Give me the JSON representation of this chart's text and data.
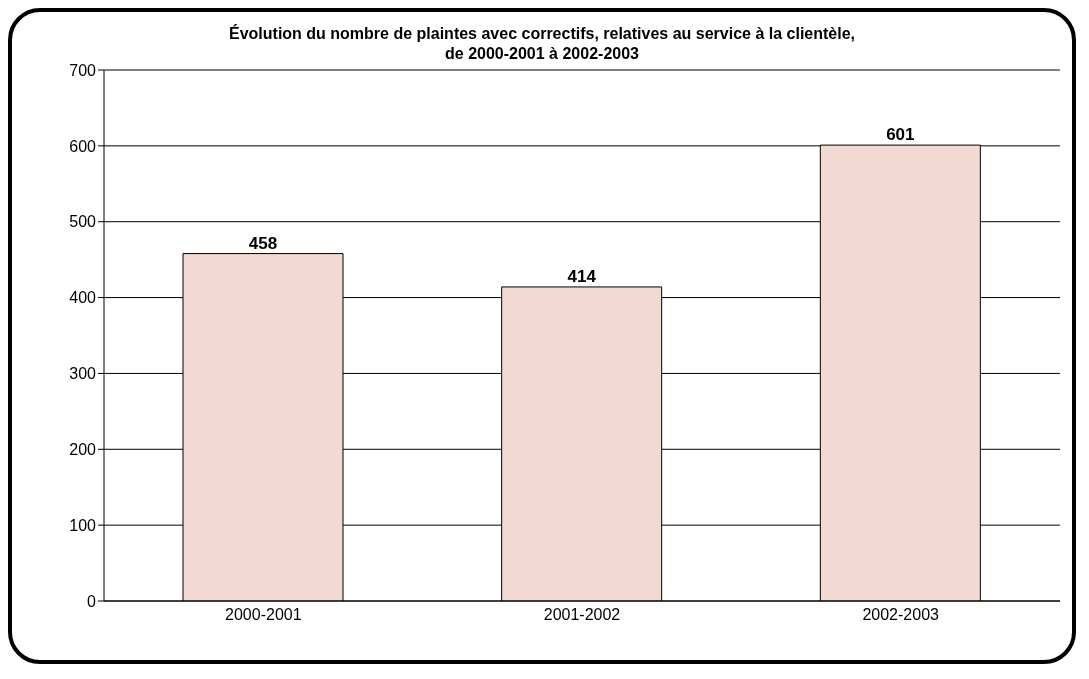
{
  "chart_data": {
    "type": "bar",
    "title": "Évolution du nombre de plaintes avec correctifs, relatives au service à la clientèle,\nde 2000-2001 à 2002-2003",
    "categories": [
      "2000-2001",
      "2001-2002",
      "2002-2003"
    ],
    "values": [
      458,
      414,
      601
    ],
    "color": "#f2d9d2",
    "ylim": [
      0,
      700
    ],
    "yticks": [
      0,
      100,
      200,
      300,
      400,
      500,
      600,
      700
    ],
    "grid": "y",
    "data_labels": true
  }
}
